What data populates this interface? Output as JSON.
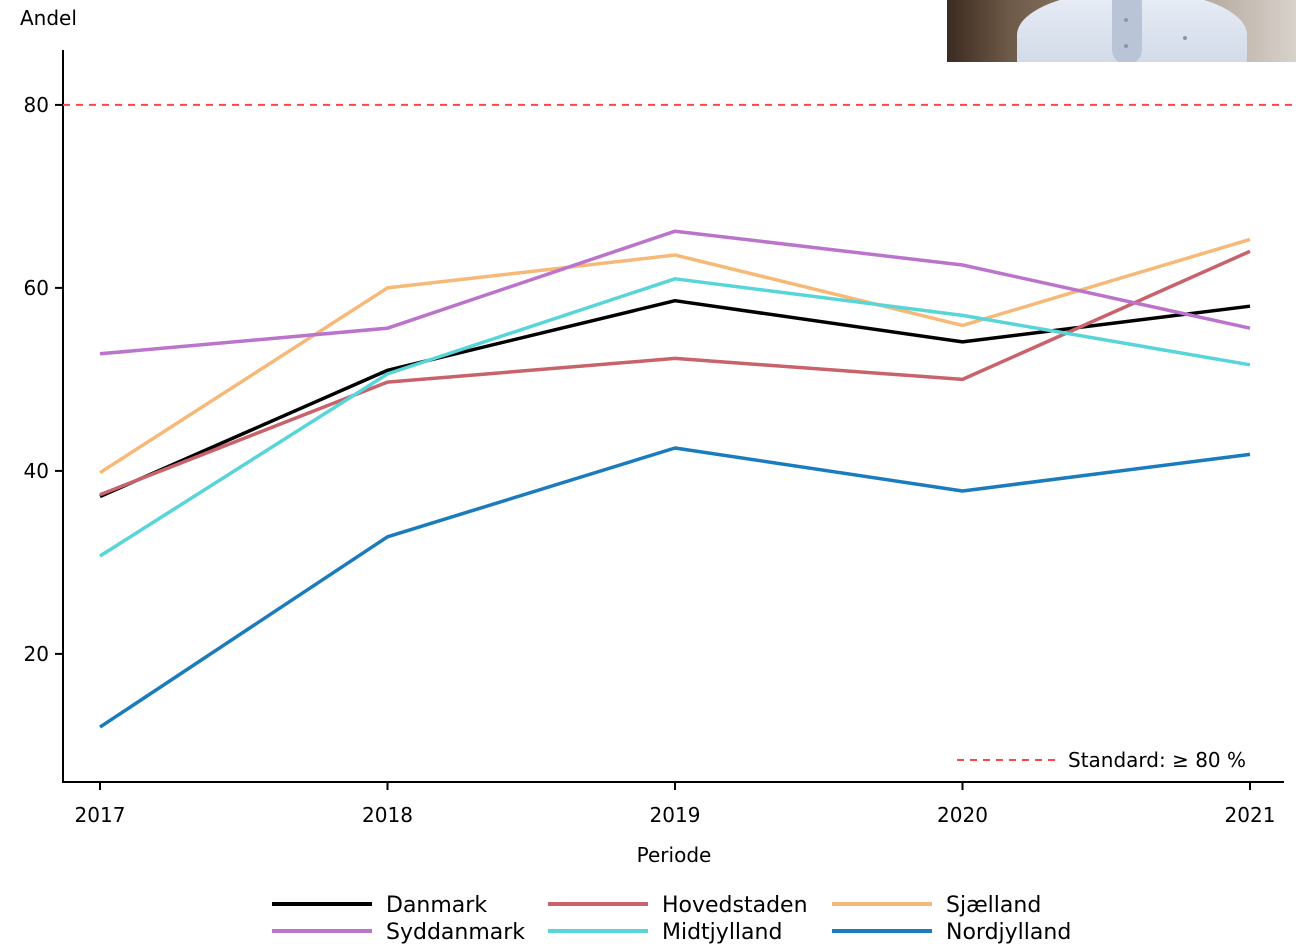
{
  "video_thumbnail": {
    "icon": "presenter-video-thumbnail"
  },
  "chart_data": {
    "type": "line",
    "title": "",
    "ylabel": "Andel",
    "xlabel": "Periode",
    "x": [
      2017,
      2018,
      2019,
      2020,
      2021
    ],
    "x_ticks": [
      "2017",
      "2018",
      "2019",
      "2020",
      "2021"
    ],
    "y_ticks": [
      "20",
      "40",
      "60",
      "80"
    ],
    "ylim": [
      6,
      86
    ],
    "grid": false,
    "series": [
      {
        "name": "Danmark",
        "color": "#000000",
        "values": [
          37.2,
          51.0,
          58.6,
          54.1,
          58.0
        ]
      },
      {
        "name": "Hovedstaden",
        "color": "#c8626b",
        "values": [
          37.4,
          49.7,
          52.3,
          50.0,
          64.0
        ]
      },
      {
        "name": "Sjælland",
        "color": "#f7b978",
        "values": [
          39.8,
          60.0,
          63.6,
          55.9,
          65.3
        ]
      },
      {
        "name": "Syddanmark",
        "color": "#bb73cc",
        "values": [
          52.8,
          55.6,
          66.2,
          62.5,
          55.6
        ]
      },
      {
        "name": "Midtjylland",
        "color": "#58d5d8",
        "values": [
          30.7,
          50.6,
          61.0,
          57.0,
          51.6
        ]
      },
      {
        "name": "Nordjylland",
        "color": "#1a7bbd",
        "values": [
          12.0,
          32.8,
          42.5,
          37.8,
          41.8
        ]
      }
    ],
    "reference_line": {
      "value": 80,
      "label": "Standard: ≥ 80 %",
      "color": "#ff4545",
      "style": "dashed"
    },
    "legend": {
      "placement": "bottom",
      "columns": 3,
      "entries": [
        "Danmark",
        "Hovedstaden",
        "Sjælland",
        "Syddanmark",
        "Midtjylland",
        "Nordjylland"
      ]
    }
  }
}
